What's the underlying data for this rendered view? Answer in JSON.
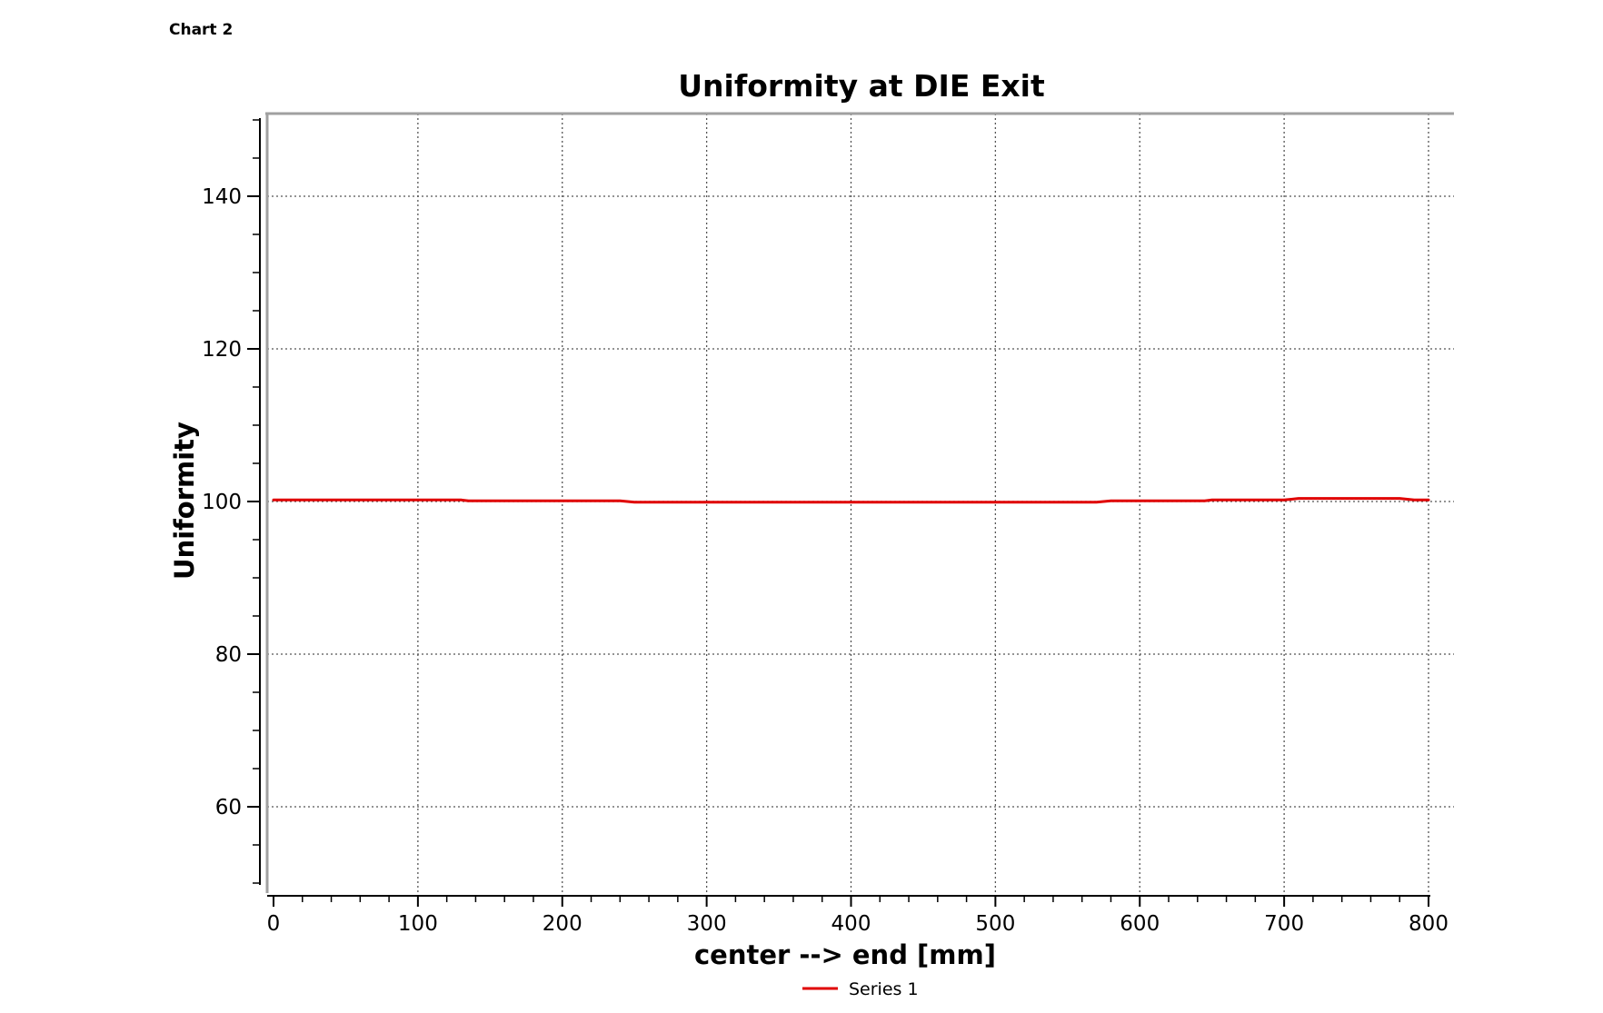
{
  "page": {
    "label": "Chart 2"
  },
  "chart_data": {
    "type": "line",
    "title": "Uniformity at DIE Exit",
    "xlabel": "center --> end [mm]",
    "ylabel": "Uniformity",
    "xlim": [
      0,
      800
    ],
    "ylim": [
      50,
      150
    ],
    "x_ticks": [
      0,
      100,
      200,
      300,
      400,
      500,
      600,
      700,
      800
    ],
    "y_ticks": [
      60,
      80,
      100,
      120,
      140
    ],
    "x_tick_labels": [
      "0",
      "100",
      "200",
      "300",
      "400",
      "500",
      "600",
      "700",
      "800"
    ],
    "y_tick_labels": [
      "60",
      "80",
      "100",
      "120",
      "140"
    ],
    "grid": true,
    "legend_position": "bottom-center",
    "series": [
      {
        "name": "Series 1",
        "color": "#e00000",
        "x": [
          0,
          50,
          100,
          130,
          135,
          200,
          240,
          250,
          300,
          400,
          500,
          570,
          580,
          600,
          645,
          650,
          700,
          705,
          710,
          750,
          780,
          790,
          800
        ],
        "y": [
          100.2,
          100.2,
          100.2,
          100.2,
          100.1,
          100.1,
          100.1,
          99.9,
          99.9,
          99.9,
          99.9,
          99.9,
          100.1,
          100.1,
          100.1,
          100.2,
          100.2,
          100.3,
          100.4,
          100.4,
          100.4,
          100.2,
          100.2
        ]
      }
    ]
  }
}
